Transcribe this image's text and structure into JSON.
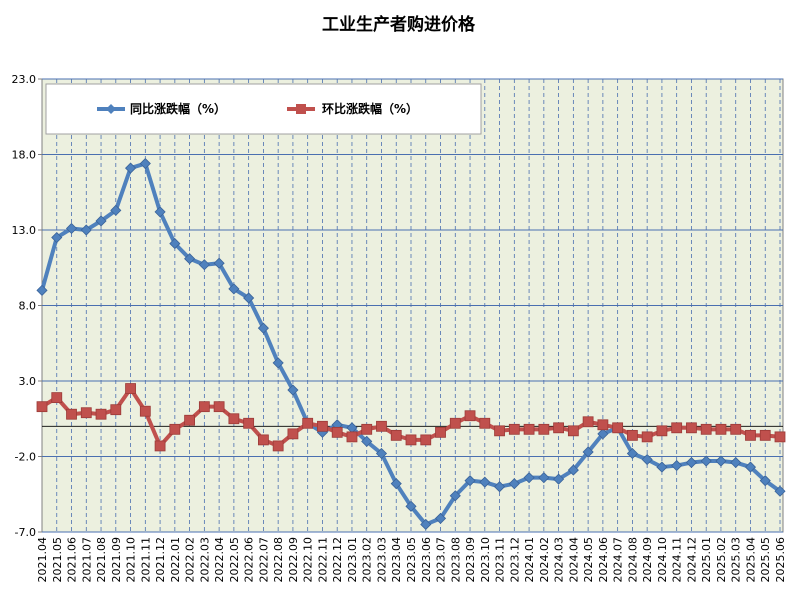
{
  "chart_data": {
    "type": "line",
    "title": "工业生产者购进价格",
    "xlabel": "",
    "ylabel": "",
    "ylim": [
      -7.0,
      23.0
    ],
    "yticks": [
      "23.0",
      "18.0",
      "13.0",
      "8.0",
      "3.0",
      "-2.0",
      "-7.0"
    ],
    "grid": true,
    "legend_position": "top-left",
    "background_color": "#ecf0df",
    "categories": [
      "2021.04",
      "2021.05",
      "2021.06",
      "2021.07",
      "2021.08",
      "2021.09",
      "2021.10",
      "2021.11",
      "2021.12",
      "2022.01",
      "2022.02",
      "2022.03",
      "2022.04",
      "2022.05",
      "2022.06",
      "2022.07",
      "2022.08",
      "2022.09",
      "2022.10",
      "2022.11",
      "2022.12",
      "2023.01",
      "2023.02",
      "2023.03",
      "2023.04",
      "2023.05",
      "2023.06",
      "2023.07",
      "2023.08",
      "2023.09",
      "2023.10",
      "2023.11",
      "2023.12",
      "2024.01",
      "2024.02",
      "2024.03",
      "2024.04",
      "2024.05",
      "2024.06",
      "2024.07",
      "2024.08",
      "2024.09",
      "2024.10",
      "2024.11",
      "2024.12",
      "2025.01",
      "2025.02",
      "2025.03",
      "2025.04",
      "2025.05",
      "2025.06"
    ],
    "series": [
      {
        "name": "同比涨跌幅（%）",
        "color": "#4f81bd",
        "marker": "diamond",
        "values": [
          9.0,
          12.5,
          13.1,
          13.0,
          13.6,
          14.3,
          17.1,
          17.4,
          14.2,
          12.1,
          11.1,
          10.7,
          10.8,
          9.1,
          8.5,
          6.5,
          4.2,
          2.4,
          0.2,
          -0.4,
          0.1,
          -0.1,
          -1.0,
          -1.8,
          -3.8,
          -5.3,
          -6.5,
          -6.1,
          -4.6,
          -3.6,
          -3.7,
          -4.0,
          -3.8,
          -3.4,
          -3.4,
          -3.5,
          -2.9,
          -1.7,
          -0.5,
          -0.1,
          -1.8,
          -2.2,
          -2.7,
          -2.6,
          -2.4,
          -2.3,
          -2.3,
          -2.4,
          -2.7,
          -3.6,
          -4.3
        ]
      },
      {
        "name": "环比涨跌幅（%）",
        "color": "#c0504d",
        "marker": "square",
        "values": [
          1.3,
          1.9,
          0.8,
          0.9,
          0.8,
          1.1,
          2.5,
          1.0,
          -1.3,
          -0.2,
          0.4,
          1.3,
          1.3,
          0.5,
          0.2,
          -0.9,
          -1.3,
          -0.5,
          0.2,
          -0.0,
          -0.4,
          -0.7,
          -0.2,
          -0.0,
          -0.6,
          -0.9,
          -0.9,
          -0.4,
          0.2,
          0.7,
          0.2,
          -0.3,
          -0.2,
          -0.2,
          -0.2,
          -0.1,
          -0.3,
          0.3,
          0.1,
          -0.1,
          -0.6,
          -0.7,
          -0.3,
          -0.1,
          -0.1,
          -0.2,
          -0.2,
          -0.2,
          -0.6,
          -0.6,
          -0.7
        ]
      }
    ]
  }
}
